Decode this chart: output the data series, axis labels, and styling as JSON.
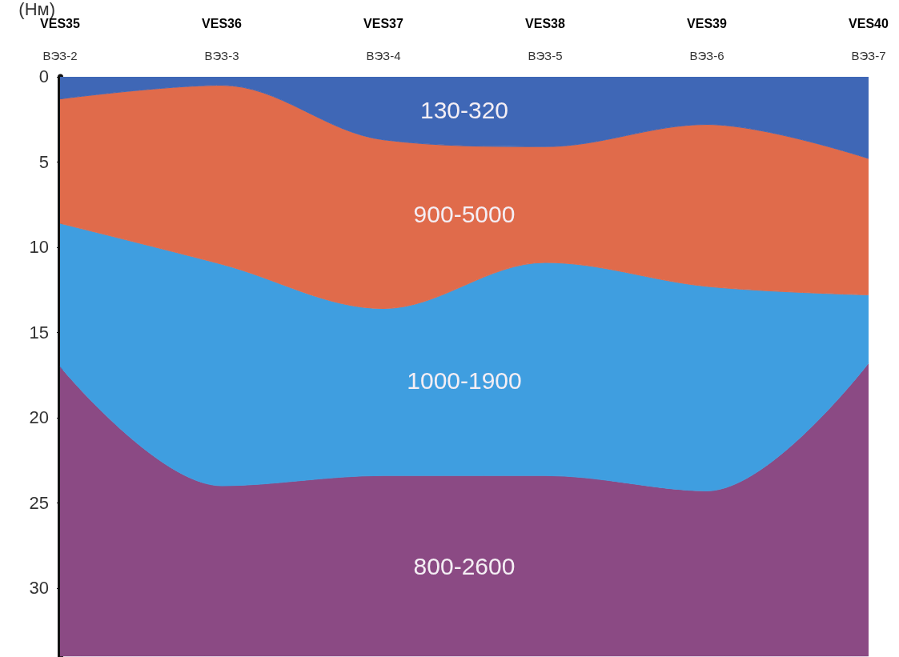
{
  "chart_data": {
    "type": "area",
    "stacked": true,
    "ylabel": "(Нм)",
    "categories": [
      "VES35",
      "VES36",
      "VES37",
      "VES38",
      "VES39",
      "VES40"
    ],
    "ylim": [
      34,
      0
    ],
    "yticks": [
      0,
      5,
      10,
      15,
      20,
      25,
      30
    ],
    "grid": false,
    "legend": false,
    "series": [
      {
        "name": "130-320",
        "color": "#3f67b6",
        "values": [
          1.3,
          0.5,
          3.7,
          4.1,
          2.8,
          4.8
        ]
      },
      {
        "name": "900-5000",
        "color": "#e06b4b",
        "values": [
          7.3,
          10.5,
          9.9,
          6.8,
          9.5,
          8.0
        ]
      },
      {
        "name": "1000-1900",
        "color": "#3f9ee0",
        "values": [
          8.4,
          13.0,
          9.8,
          12.5,
          12.0,
          4.0
        ]
      },
      {
        "name": "800-2600",
        "color": "#8b4a84",
        "values": [
          17.0,
          10.0,
          10.6,
          10.6,
          9.7,
          17.2
        ]
      }
    ],
    "annotations": [
      {
        "text": "ВЭЗ-2",
        "x": "VES35",
        "y": 0
      },
      {
        "text": "ВЭЗ-3",
        "x": "VES36",
        "y": 0
      },
      {
        "text": "ВЭЗ-4",
        "x": "VES37",
        "y": 0
      },
      {
        "text": "ВЭЗ-5",
        "x": "VES38",
        "y": 0
      },
      {
        "text": "ВЭЗ-6",
        "x": "VES39",
        "y": 0
      },
      {
        "text": "ВЭЗ-7",
        "x": "VES40",
        "y": 0
      }
    ]
  }
}
